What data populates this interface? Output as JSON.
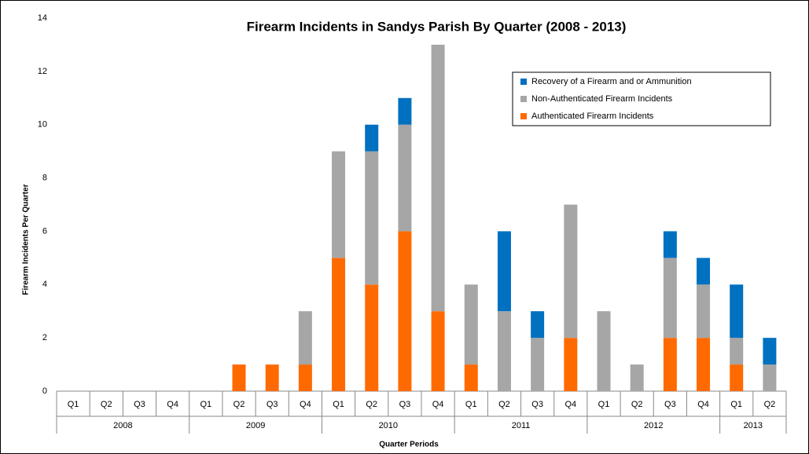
{
  "chart_data": {
    "type": "stacked_bar",
    "title": "Firearm Incidents in Sandys Parish By Quarter (2008 - 2013)",
    "x_label": "Quarter Periods",
    "y_label": "Firearm Incidents  Per Quarter",
    "categories": [
      "Q1",
      "Q2",
      "Q3",
      "Q4",
      "Q1",
      "Q2",
      "Q3",
      "Q4",
      "Q1",
      "Q2",
      "Q3",
      "Q4",
      "Q1",
      "Q2",
      "Q3",
      "Q4",
      "Q1",
      "Q2",
      "Q3",
      "Q4",
      "Q1",
      "Q2"
    ],
    "x_groups": [
      "2008",
      "2009",
      "2010",
      "2011",
      "2012",
      "2013"
    ],
    "series": [
      {
        "name": "Authenticated Firearm Incidents",
        "color": "#ff6a00",
        "values": [
          0,
          0,
          0,
          0,
          0,
          1,
          1,
          1,
          5,
          4,
          6,
          3,
          1,
          0,
          0,
          2,
          0,
          0,
          2,
          2,
          1,
          0
        ]
      },
      {
        "name": "Non-Authenticated Firearm Incidents",
        "color": "#a6a6a6",
        "values": [
          0,
          0,
          0,
          0,
          0,
          0,
          0,
          2,
          4,
          5,
          4,
          10,
          3,
          3,
          2,
          5,
          3,
          1,
          3,
          2,
          1,
          1
        ]
      },
      {
        "name": "Recovery of a Firearm and or Ammunition",
        "color": "#0070c0",
        "values": [
          0,
          0,
          0,
          0,
          0,
          0,
          0,
          0,
          0,
          1,
          1,
          0,
          0,
          3,
          1,
          0,
          0,
          0,
          1,
          1,
          2,
          1
        ]
      }
    ],
    "ylim": [
      0,
      14
    ],
    "yticks": [
      0,
      2,
      4,
      6,
      8,
      10,
      12,
      14
    ],
    "grid": false,
    "legend": "upper right"
  }
}
